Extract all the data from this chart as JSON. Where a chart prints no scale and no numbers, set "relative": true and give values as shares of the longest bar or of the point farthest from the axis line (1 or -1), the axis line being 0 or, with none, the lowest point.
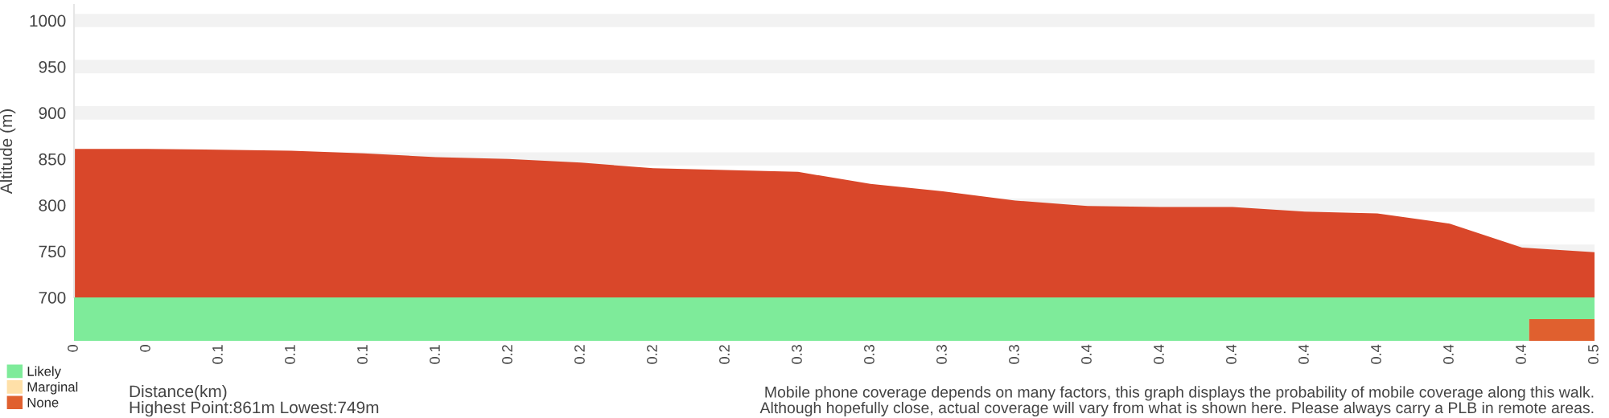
{
  "chart_data": [
    {
      "type": "area",
      "ylabel": "Altitude (m)",
      "xlabel": "Distance(km)",
      "categories": [
        "0",
        "0",
        "0.1",
        "0.1",
        "0.1",
        "0.1",
        "0.2",
        "0.2",
        "0.2",
        "0.2",
        "0.3",
        "0.3",
        "0.3",
        "0.3",
        "0.4",
        "0.4",
        "0.4",
        "0.4",
        "0.4",
        "0.4",
        "0.4",
        "0.5"
      ],
      "series": [
        {
          "color": "#d9472a",
          "values": [
            861,
            861,
            860,
            859,
            856,
            852,
            850,
            846,
            840,
            838,
            836,
            823,
            815,
            805,
            799,
            798,
            798,
            793,
            791,
            780,
            754,
            749
          ]
        }
      ],
      "ylim": [
        700,
        1017
      ],
      "yticks": [
        700,
        750,
        800,
        850,
        900,
        950,
        1000
      ],
      "grid": "y",
      "annotations": [
        "Highest Point:861m Lowest:749m",
        "Mobile phone coverage depends on many factors, this graph displays the probability of mobile coverage along this walk.\nAlthough hopefully close, actual coverage will vary from what is shown here. Please always carry a PLB in remote areas."
      ]
    },
    {
      "type": "bar",
      "orientation": "horizontal",
      "stacked": true,
      "relative": true,
      "legend": "bottom left",
      "categories": [
        null,
        null
      ],
      "series": [
        {
          "name": "Likely",
          "color": "#7eeb9a",
          "values": [
            1,
            0.957
          ]
        },
        {
          "name": "Marginal",
          "color": "#ffe0a8",
          "values": [
            0,
            0
          ]
        },
        {
          "name": "None",
          "color": "#e0602f",
          "values": [
            0,
            0.043
          ]
        }
      ]
    }
  ]
}
